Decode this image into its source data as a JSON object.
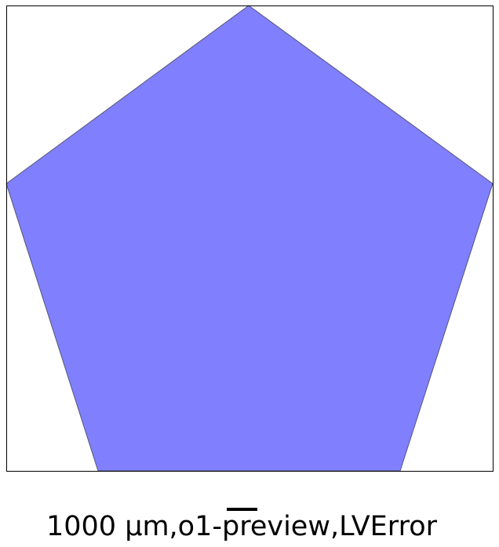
{
  "figure": {
    "shape": "regular-pentagon",
    "fill_color": "#8080ff",
    "edge_color": "#555577",
    "frame_color": "#000000",
    "background": "#ffffff"
  },
  "scale_bar": {
    "color": "#000000"
  },
  "caption": {
    "text": "1000 μm,o1-preview,LVError"
  }
}
